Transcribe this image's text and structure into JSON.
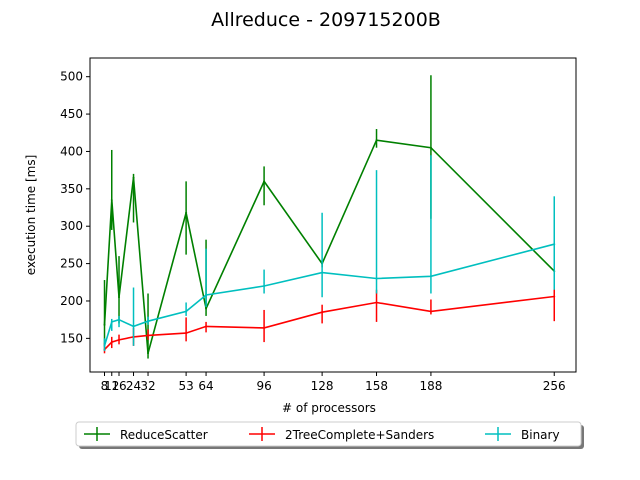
{
  "chart_data": {
    "type": "line",
    "title": "Allreduce - 209715200B",
    "xlabel": "# of processors",
    "ylabel": "execution time [ms]",
    "xlim": [
      0,
      268
    ],
    "ylim": [
      105,
      525
    ],
    "x": [
      8,
      12,
      16,
      24,
      32,
      53,
      64,
      96,
      128,
      158,
      188,
      256
    ],
    "xticks": [
      8,
      12,
      16,
      24,
      32,
      53,
      64,
      96,
      128,
      158,
      188,
      256
    ],
    "xtick_labels": [
      "8",
      "12",
      "16",
      "24",
      "32",
      "53",
      "64",
      "96",
      "128",
      "158",
      "188",
      "256"
    ],
    "yticks": [
      150,
      200,
      250,
      300,
      350,
      400,
      450,
      500
    ],
    "ytick_labels": [
      "150",
      "200",
      "250",
      "300",
      "350",
      "400",
      "450",
      "500"
    ],
    "grid": false,
    "legend_placement": "below",
    "series": [
      {
        "name": "ReduceScatter",
        "color": "#008000",
        "values": [
          168,
          335,
          205,
          365,
          130,
          318,
          190,
          360,
          250,
          415,
          405,
          240
        ],
        "err_low": [
          140,
          295,
          170,
          305,
          123,
          262,
          180,
          328,
          245,
          405,
          310,
          235
        ],
        "err_high": [
          228,
          402,
          260,
          370,
          210,
          360,
          282,
          380,
          255,
          430,
          502,
          250
        ]
      },
      {
        "name": "2TreeComplete+Sanders",
        "color": "#ff0000",
        "values": [
          135,
          145,
          148,
          152,
          154,
          157,
          166,
          164,
          185,
          198,
          186,
          206
        ],
        "err_low": [
          130,
          137,
          142,
          140,
          148,
          146,
          158,
          145,
          170,
          172,
          182,
          173
        ],
        "err_high": [
          144,
          152,
          155,
          164,
          162,
          178,
          172,
          188,
          195,
          215,
          202,
          220
        ]
      },
      {
        "name": "Binary",
        "color": "#00bfbf",
        "values": [
          140,
          172,
          175,
          166,
          173,
          186,
          208,
          220,
          238,
          230,
          233,
          276
        ],
        "err_low": [
          133,
          160,
          165,
          140,
          168,
          180,
          192,
          210,
          205,
          210,
          210,
          215
        ],
        "err_high": [
          150,
          176,
          180,
          218,
          179,
          198,
          270,
          242,
          318,
          375,
          395,
          340
        ]
      }
    ]
  }
}
